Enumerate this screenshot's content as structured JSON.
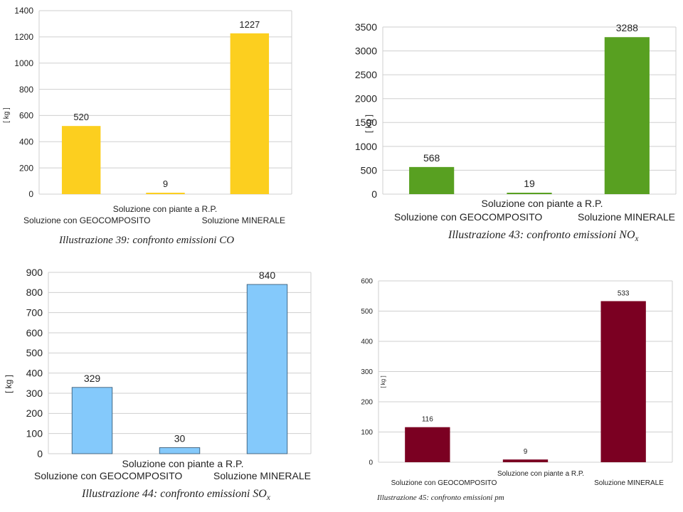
{
  "chart_data": [
    {
      "type": "bar",
      "categories": [
        "Soluzione con GEOCOMPOSITO",
        "Soluzione con piante a R.P.",
        "Soluzione MINERALE"
      ],
      "values": [
        520,
        9,
        1227
      ],
      "ylabel": "[ kg ]",
      "ylim": [
        0,
        1400
      ],
      "yticks": [
        "0",
        "200",
        "400",
        "600",
        "800",
        "1000",
        "1200",
        "1400"
      ],
      "data_labels": [
        "520",
        "9",
        "1227"
      ],
      "color": "#fccf1f",
      "grid": true,
      "caption": {
        "text": "Illustrazione 39: confronto emissioni CO",
        "sub": ""
      }
    },
    {
      "type": "bar",
      "categories": [
        "Soluzione con GEOCOMPOSITO",
        "Soluzione con piante a R.P.",
        "Soluzione MINERALE"
      ],
      "values": [
        568,
        19,
        3288
      ],
      "ylabel": "[ kg ]",
      "ylim": [
        0,
        3500
      ],
      "yticks": [
        "0",
        "500",
        "1000",
        "1500",
        "2000",
        "2500",
        "3000",
        "3500"
      ],
      "data_labels": [
        "568",
        "19",
        "3288"
      ],
      "color": "#58a021",
      "grid": true,
      "caption": {
        "text": "Illustrazione 43: confronto emissioni NO",
        "sub": "x"
      }
    },
    {
      "type": "bar",
      "categories": [
        "Soluzione con GEOCOMPOSITO",
        "Soluzione con piante a R.P.",
        "Soluzione MINERALE"
      ],
      "values": [
        329,
        30,
        840
      ],
      "ylabel": "[ kg ]",
      "ylim": [
        0,
        900
      ],
      "yticks": [
        "0",
        "100",
        "200",
        "300",
        "400",
        "500",
        "600",
        "700",
        "800",
        "900"
      ],
      "data_labels": [
        "329",
        "30",
        "840"
      ],
      "color": "#84c9fb",
      "grid": true,
      "caption": {
        "text": "Illustrazione 44: confronto emissioni SO",
        "sub": "x"
      }
    },
    {
      "type": "bar",
      "categories": [
        "Soluzione con GEOCOMPOSITO",
        "Soluzione con piante a R.P.",
        "Soluzione MINERALE"
      ],
      "values": [
        116,
        9,
        533
      ],
      "ylabel": "[ kg ]",
      "ylim": [
        0,
        600
      ],
      "yticks": [
        "0",
        "100",
        "200",
        "300",
        "400",
        "500",
        "600"
      ],
      "data_labels": [
        "116",
        "9",
        "533"
      ],
      "color": "#7b0022",
      "grid": true,
      "caption": {
        "text": "Illustrazione 45: confronto emissioni pm",
        "sub": ""
      }
    }
  ]
}
